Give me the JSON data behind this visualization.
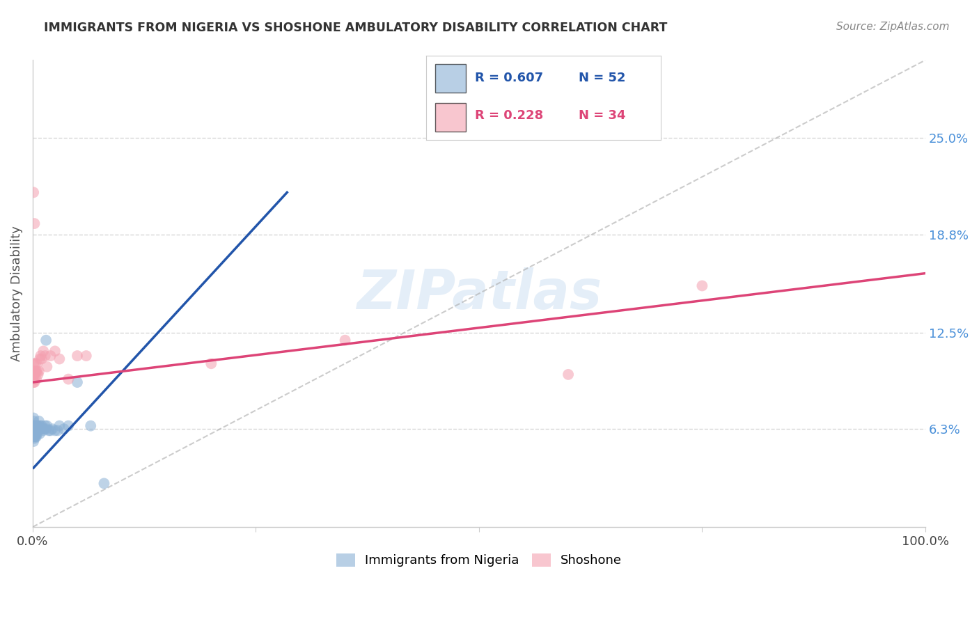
{
  "title": "IMMIGRANTS FROM NIGERIA VS SHOSHONE AMBULATORY DISABILITY CORRELATION CHART",
  "source": "Source: ZipAtlas.com",
  "ylabel": "Ambulatory Disability",
  "watermark": "ZIPatlas",
  "xlim": [
    0.0,
    1.0
  ],
  "ylim": [
    0.0,
    0.3
  ],
  "xtick_positions": [
    0.0,
    0.25,
    0.5,
    0.75,
    1.0
  ],
  "xtick_labels": [
    "0.0%",
    "",
    "",
    "",
    "100.0%"
  ],
  "ytick_positions": [
    0.063,
    0.125,
    0.188,
    0.25
  ],
  "ytick_labels": [
    "6.3%",
    "12.5%",
    "18.8%",
    "25.0%"
  ],
  "grid_color": "#cccccc",
  "background_color": "#ffffff",
  "blue_color": "#89afd4",
  "pink_color": "#f4a0b0",
  "blue_line_color": "#2255aa",
  "pink_line_color": "#dd4477",
  "ref_line_color": "#aaaaaa",
  "legend_blue_R": "R = 0.607",
  "legend_blue_N": "N = 52",
  "legend_pink_R": "R = 0.228",
  "legend_pink_N": "N = 34",
  "legend_label_blue": "Immigrants from Nigeria",
  "legend_label_pink": "Shoshone",
  "blue_line_x": [
    0.001,
    0.285
  ],
  "blue_line_y": [
    0.038,
    0.215
  ],
  "pink_line_x": [
    0.0,
    1.0
  ],
  "pink_line_y": [
    0.093,
    0.163
  ],
  "ref_line_x": [
    0.0,
    1.0
  ],
  "ref_line_y": [
    0.0,
    0.3
  ],
  "nigeria_x": [
    0.001,
    0.001,
    0.001,
    0.001,
    0.001,
    0.001,
    0.001,
    0.001,
    0.002,
    0.002,
    0.002,
    0.002,
    0.002,
    0.002,
    0.003,
    0.003,
    0.003,
    0.003,
    0.003,
    0.004,
    0.004,
    0.004,
    0.004,
    0.005,
    0.005,
    0.005,
    0.006,
    0.006,
    0.007,
    0.007,
    0.008,
    0.008,
    0.009,
    0.01,
    0.011,
    0.012,
    0.013,
    0.014,
    0.015,
    0.016,
    0.018,
    0.02,
    0.022,
    0.025,
    0.028,
    0.03,
    0.035,
    0.04,
    0.05,
    0.065,
    0.08,
    0.015
  ],
  "nigeria_y": [
    0.06,
    0.058,
    0.062,
    0.055,
    0.065,
    0.063,
    0.068,
    0.07,
    0.057,
    0.06,
    0.062,
    0.065,
    0.058,
    0.063,
    0.058,
    0.06,
    0.062,
    0.065,
    0.063,
    0.06,
    0.063,
    0.065,
    0.058,
    0.06,
    0.063,
    0.065,
    0.062,
    0.065,
    0.063,
    0.068,
    0.06,
    0.065,
    0.063,
    0.065,
    0.063,
    0.062,
    0.063,
    0.065,
    0.063,
    0.065,
    0.062,
    0.062,
    0.063,
    0.062,
    0.062,
    0.065,
    0.063,
    0.065,
    0.093,
    0.065,
    0.028,
    0.12
  ],
  "shoshone_x": [
    0.001,
    0.001,
    0.001,
    0.001,
    0.002,
    0.002,
    0.002,
    0.002,
    0.003,
    0.003,
    0.004,
    0.004,
    0.005,
    0.005,
    0.006,
    0.007,
    0.008,
    0.009,
    0.01,
    0.012,
    0.014,
    0.016,
    0.02,
    0.025,
    0.03,
    0.04,
    0.05,
    0.06,
    0.2,
    0.35,
    0.6,
    0.75,
    0.001,
    0.002
  ],
  "shoshone_y": [
    0.098,
    0.093,
    0.105,
    0.1,
    0.095,
    0.098,
    0.1,
    0.093,
    0.1,
    0.105,
    0.1,
    0.095,
    0.1,
    0.105,
    0.098,
    0.1,
    0.108,
    0.11,
    0.108,
    0.113,
    0.11,
    0.103,
    0.11,
    0.113,
    0.108,
    0.095,
    0.11,
    0.11,
    0.105,
    0.12,
    0.098,
    0.155,
    0.215,
    0.195
  ]
}
